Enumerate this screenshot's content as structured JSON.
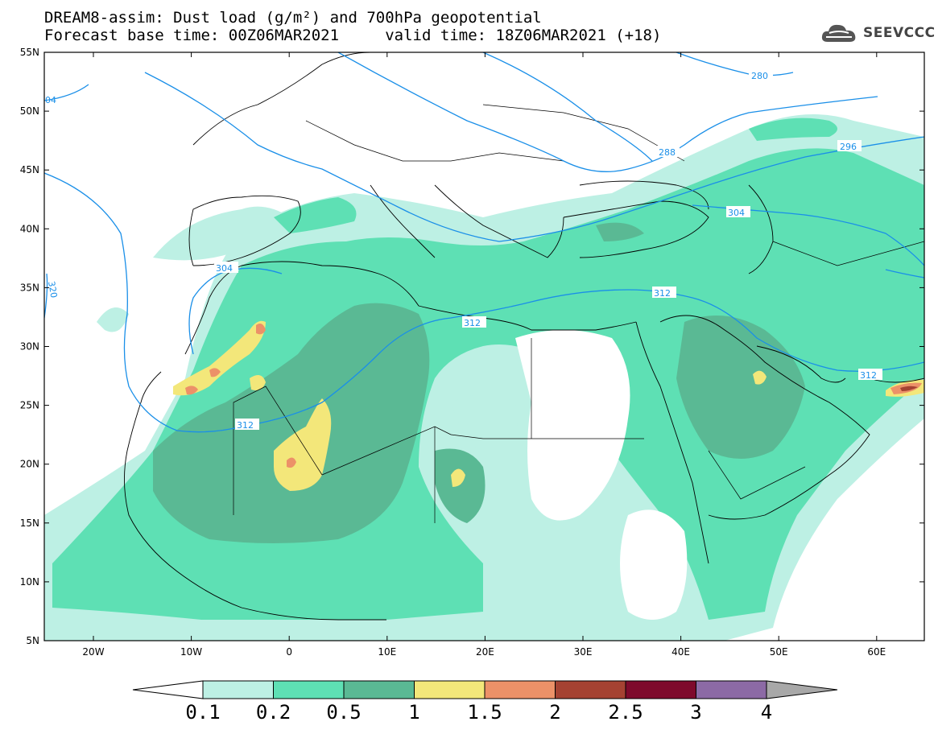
{
  "header": {
    "line1": "DREAM8-assim: Dust load (g/m²) and 700hPa geopotential",
    "line2": "Forecast base time: 00Z06MAR2021     valid time: 18Z06MAR2021 (+18)"
  },
  "logo": {
    "text": "SEEVCCC",
    "icon": "cloud-logo-icon"
  },
  "axes": {
    "lat_labels": [
      "55N",
      "50N",
      "45N",
      "40N",
      "35N",
      "30N",
      "25N",
      "20N",
      "15N",
      "10N",
      "5N"
    ],
    "lon_labels": [
      "20W",
      "10W",
      "0",
      "10E",
      "20E",
      "30E",
      "40E",
      "50E",
      "60E"
    ]
  },
  "contour_labels": [
    "280",
    "288",
    "296",
    "304",
    "304",
    "312",
    "312",
    "312",
    "312",
    "320",
    "04"
  ],
  "colorbar": {
    "ticks": [
      "0.1",
      "0.2",
      "0.5",
      "1",
      "1.5",
      "2",
      "2.5",
      "3",
      "4"
    ],
    "colors": [
      "#bdf0e4",
      "#5ee0b4",
      "#5ab994",
      "#f3e77a",
      "#ec9168",
      "#a54232",
      "#7e0a2c",
      "#8c6aa5",
      "#a8a8a8"
    ]
  },
  "dust_colors": {
    "light": "#bdf0e4",
    "medium": "#5ee0b4",
    "dark": "#5ab994",
    "yellow": "#f3e77a",
    "orange": "#ec9168",
    "red": "#a54232"
  },
  "contour_color": "#1a8fe8"
}
